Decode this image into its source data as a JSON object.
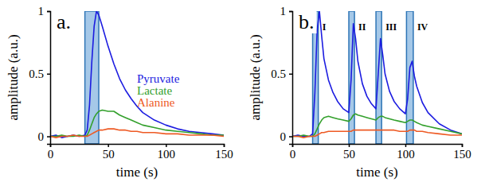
{
  "chart_data": [
    {
      "type": "line",
      "title": "a.",
      "xlabel": "time (s)",
      "ylabel": "amplitude (a.u.)",
      "xlim": [
        0,
        150
      ],
      "xticks": [
        0,
        50,
        100,
        150
      ],
      "ylim": [
        -0.06,
        1
      ],
      "yticks": [
        0,
        0.5,
        1
      ],
      "legend": "right",
      "bands": [
        {
          "x0": 30,
          "x1": 42
        }
      ],
      "x": [
        0,
        5,
        10,
        15,
        20,
        25,
        30,
        32,
        34,
        36,
        38,
        40,
        42,
        45,
        50,
        55,
        60,
        65,
        70,
        75,
        80,
        90,
        100,
        110,
        120,
        130,
        140,
        150
      ],
      "series": [
        {
          "name": "Pyruvate",
          "color": "#1c1ce0",
          "values": [
            0,
            0.01,
            -0.01,
            0,
            0.01,
            0,
            0.01,
            0.05,
            0.25,
            0.6,
            0.88,
            1.0,
            0.97,
            0.88,
            0.72,
            0.58,
            0.46,
            0.37,
            0.3,
            0.24,
            0.19,
            0.13,
            0.09,
            0.06,
            0.04,
            0.03,
            0.02,
            0.01
          ]
        },
        {
          "name": "Lactate",
          "color": "#33a02c",
          "values": [
            0,
            0,
            0.01,
            0,
            0,
            0.01,
            0,
            0.01,
            0.05,
            0.1,
            0.15,
            0.18,
            0.2,
            0.21,
            0.2,
            0.2,
            0.17,
            0.15,
            0.13,
            0.11,
            0.09,
            0.07,
            0.05,
            0.04,
            0.03,
            0.02,
            0.01,
            0.01
          ]
        },
        {
          "name": "Alanine",
          "color": "#ee5a24",
          "values": [
            0,
            -0.01,
            0,
            0,
            0.01,
            0,
            0,
            0,
            0.01,
            0.02,
            0.03,
            0.04,
            0.05,
            0.05,
            0.06,
            0.06,
            0.05,
            0.05,
            0.04,
            0.04,
            0.03,
            0.03,
            0.02,
            0.02,
            0.01,
            0.01,
            0.01,
            0
          ]
        }
      ]
    },
    {
      "type": "line",
      "title": "b.",
      "xlabel": "time (s)",
      "ylabel": "amplitude (a.u.)",
      "xlim": [
        0,
        150
      ],
      "xticks": [
        0,
        50,
        100,
        150
      ],
      "ylim": [
        -0.06,
        1
      ],
      "yticks": [
        0,
        0.5,
        1
      ],
      "bands": [
        {
          "x0": 18,
          "x1": 23,
          "label": "I"
        },
        {
          "x0": 50,
          "x1": 55,
          "label": "II"
        },
        {
          "x0": 74,
          "x1": 79,
          "label": "III"
        },
        {
          "x0": 101,
          "x1": 107,
          "label": "IV"
        }
      ],
      "x": [
        0,
        5,
        10,
        15,
        18,
        20,
        22,
        24,
        26,
        28,
        32,
        36,
        40,
        45,
        50,
        52,
        54,
        56,
        58,
        62,
        66,
        70,
        74,
        76,
        78,
        80,
        82,
        86,
        90,
        95,
        100,
        102,
        104,
        106,
        108,
        110,
        115,
        120,
        130,
        140,
        150
      ],
      "series": [
        {
          "color": "#1c1ce0",
          "values": [
            0,
            0.01,
            0,
            0,
            0.02,
            0.35,
            0.85,
            1.0,
            0.8,
            0.62,
            0.45,
            0.35,
            0.28,
            0.22,
            0.19,
            0.45,
            0.9,
            0.78,
            0.6,
            0.42,
            0.32,
            0.26,
            0.22,
            0.5,
            0.78,
            0.65,
            0.5,
            0.36,
            0.28,
            0.22,
            0.18,
            0.3,
            0.55,
            0.6,
            0.48,
            0.4,
            0.27,
            0.19,
            0.1,
            0.05,
            0.02
          ]
        },
        {
          "color": "#33a02c",
          "values": [
            0,
            0,
            0.01,
            0,
            0,
            0.02,
            0.06,
            0.1,
            0.13,
            0.15,
            0.16,
            0.15,
            0.14,
            0.13,
            0.12,
            0.14,
            0.17,
            0.18,
            0.17,
            0.16,
            0.15,
            0.14,
            0.13,
            0.15,
            0.16,
            0.16,
            0.15,
            0.14,
            0.13,
            0.12,
            0.11,
            0.12,
            0.13,
            0.13,
            0.12,
            0.11,
            0.09,
            0.08,
            0.06,
            0.04,
            0.02
          ]
        },
        {
          "color": "#ee5a24",
          "values": [
            0,
            0,
            -0.01,
            0,
            0,
            0,
            0.01,
            0.02,
            0.03,
            0.03,
            0.04,
            0.04,
            0.04,
            0.04,
            0.04,
            0.04,
            0.05,
            0.05,
            0.05,
            0.05,
            0.05,
            0.05,
            0.05,
            0.05,
            0.05,
            0.05,
            0.05,
            0.05,
            0.05,
            0.04,
            0.04,
            0.04,
            0.05,
            0.05,
            0.05,
            0.04,
            0.04,
            0.03,
            0.02,
            0.01,
            0.01
          ]
        }
      ]
    }
  ]
}
